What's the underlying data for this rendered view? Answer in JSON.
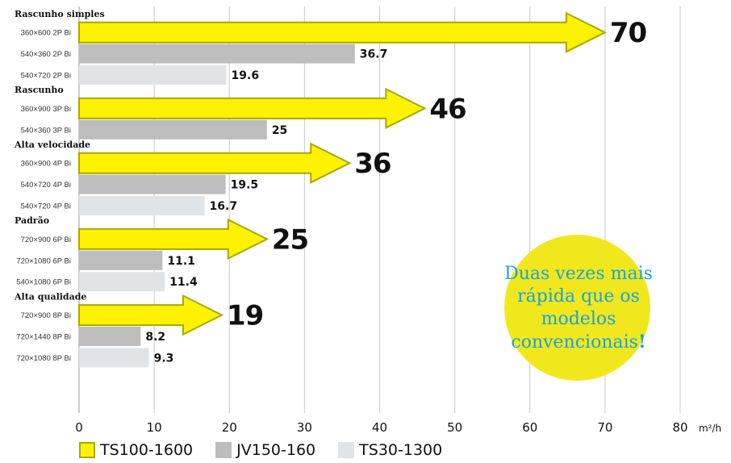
{
  "chart_data": {
    "type": "bar",
    "unit": "m²/h",
    "xlim": [
      0,
      80
    ],
    "ticks": [
      0,
      10,
      20,
      30,
      40,
      50,
      60,
      70,
      80
    ],
    "grid": true,
    "colors": {
      "TS100-1600": "#fff200",
      "TS100-1600_border": "#a8a800",
      "JV150-160": "#bdbdbd",
      "TS30-1300": "#e1e4e6"
    },
    "legend": [
      {
        "name": "TS100-1600"
      },
      {
        "name": "JV150-160"
      },
      {
        "name": "TS30-1300"
      }
    ],
    "groups": [
      {
        "name": "Rascunho simples",
        "rows": [
          {
            "label": "360×600 2P Bi",
            "series": "TS100-1600",
            "value": 70
          },
          {
            "label": "540×360 2P Bi",
            "series": "JV150-160",
            "value": 36.7
          },
          {
            "label": "540×720 2P Bi",
            "series": "TS30-1300",
            "value": 19.6
          }
        ]
      },
      {
        "name": "Rascunho",
        "rows": [
          {
            "label": "360×900 3P Bi",
            "series": "TS100-1600",
            "value": 46
          },
          {
            "label": "540×360 3P Bi",
            "series": "JV150-160",
            "value": 25
          }
        ]
      },
      {
        "name": "Alta velocidade",
        "rows": [
          {
            "label": "360×900 4P Bi",
            "series": "TS100-1600",
            "value": 36
          },
          {
            "label": "540×720 4P Bi",
            "series": "JV150-160",
            "value": 19.5
          },
          {
            "label": "540×720 4P Bi",
            "series": "TS30-1300",
            "value": 16.7
          }
        ]
      },
      {
        "name": "Padrão",
        "rows": [
          {
            "label": "720×900 6P Bi",
            "series": "TS100-1600",
            "value": 25
          },
          {
            "label": "720×1080 6P Bi",
            "series": "JV150-160",
            "value": 11.1
          },
          {
            "label": "540×1080 6P Bi",
            "series": "TS30-1300",
            "value": 11.4
          }
        ]
      },
      {
        "name": "Alta qualidade",
        "rows": [
          {
            "label": "720×900 8P Bi",
            "series": "TS100-1600",
            "value": 19
          },
          {
            "label": "720×1440 8P Bi",
            "series": "JV150-160",
            "value": 8.2
          },
          {
            "label": "720×1080 8P Bi",
            "series": "TS30-1300",
            "value": 9.3
          }
        ]
      }
    ],
    "value_labels": {
      "70": "70",
      "36.7": "36.7",
      "19.6": "19.6",
      "46": "46",
      "25": "25",
      "36": "36",
      "19.5": "19.5",
      "16.7": "16.7",
      "11.1": "11.1",
      "11.4": "11.4",
      "19": "19",
      "8.2": "8.2",
      "9.3": "9.3"
    }
  },
  "callout": {
    "text": "Duas vezes mais rápida que os modelos convencionais",
    "exclamation": "!",
    "circle_color": "#f0e81c",
    "text_color": "#1aa3dc"
  },
  "legend_labels": {
    "ts100": "TS100-1600",
    "jv150": "JV150-160",
    "ts30": "TS30-1300"
  }
}
